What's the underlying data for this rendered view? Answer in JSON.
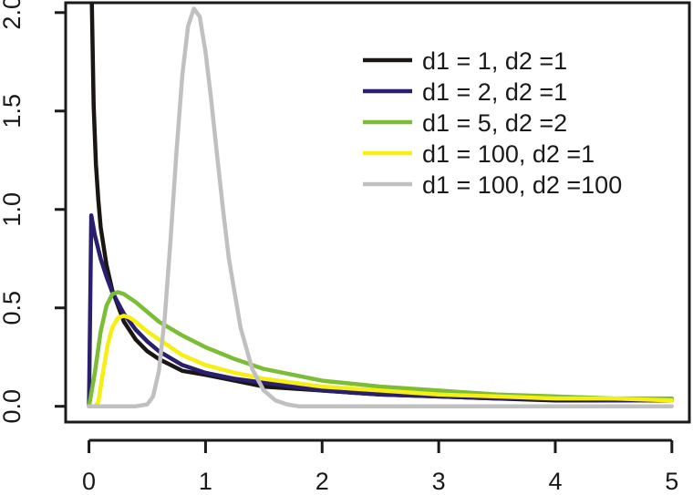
{
  "chart_data": {
    "type": "line",
    "title": "",
    "xlabel": "",
    "ylabel": "",
    "xlim": [
      -0.2,
      5.15
    ],
    "ylim": [
      -0.08,
      2.05
    ],
    "x_ticks": [
      0,
      1,
      2,
      3,
      4,
      5
    ],
    "x_tick_labels": [
      "0",
      "1",
      "2",
      "3",
      "4",
      "5"
    ],
    "y_ticks": [
      0.0,
      0.5,
      1.0,
      1.5,
      2.0
    ],
    "y_tick_labels": [
      "0.0",
      "0.5",
      "1.0",
      "1.5",
      "2.0"
    ],
    "grid": false,
    "legend_position": "top-right",
    "series": [
      {
        "name": "d1 = 1, d2 =1",
        "color": "#1a1614",
        "x": [
          0.02,
          0.04,
          0.06,
          0.08,
          0.1,
          0.15,
          0.2,
          0.3,
          0.4,
          0.5,
          0.6,
          0.8,
          1.0,
          1.25,
          1.5,
          2.0,
          2.5,
          3.0,
          3.5,
          4.0,
          4.5,
          5.0
        ],
        "y": [
          2.21,
          1.53,
          1.23,
          1.05,
          0.91,
          0.72,
          0.59,
          0.43,
          0.34,
          0.28,
          0.24,
          0.18,
          0.16,
          0.13,
          0.1,
          0.08,
          0.06,
          0.05,
          0.04,
          0.03,
          0.03,
          0.03
        ]
      },
      {
        "name": "d1 = 2, d2 =1",
        "color": "#2a1e6e",
        "x": [
          0,
          0.02,
          0.05,
          0.1,
          0.15,
          0.2,
          0.3,
          0.4,
          0.5,
          0.6,
          0.8,
          1.0,
          1.25,
          1.5,
          2.0,
          2.5,
          3.0,
          3.5,
          4.0,
          4.5,
          5.0
        ],
        "y": [
          0,
          0.97,
          0.87,
          0.75,
          0.66,
          0.58,
          0.47,
          0.39,
          0.33,
          0.28,
          0.21,
          0.17,
          0.14,
          0.12,
          0.08,
          0.06,
          0.05,
          0.04,
          0.04,
          0.03,
          0.03
        ]
      },
      {
        "name": "d1 = 5, d2 =2",
        "color": "#7bbd34",
        "x": [
          0,
          0.05,
          0.1,
          0.15,
          0.2,
          0.25,
          0.3,
          0.4,
          0.5,
          0.6,
          0.8,
          1.0,
          1.25,
          1.5,
          2.0,
          2.5,
          3.0,
          3.5,
          4.0,
          4.5,
          5.0
        ],
        "y": [
          0,
          0.17,
          0.38,
          0.51,
          0.57,
          0.58,
          0.57,
          0.53,
          0.48,
          0.43,
          0.36,
          0.3,
          0.24,
          0.19,
          0.13,
          0.1,
          0.08,
          0.06,
          0.05,
          0.04,
          0.04
        ]
      },
      {
        "name": "d1 = 100, d2 =1",
        "color": "#f7ee12",
        "x": [
          0,
          0.05,
          0.08,
          0.12,
          0.16,
          0.2,
          0.25,
          0.3,
          0.35,
          0.4,
          0.5,
          0.6,
          0.8,
          1.0,
          1.25,
          1.5,
          2.0,
          2.5,
          3.0,
          3.5,
          4.0,
          4.5,
          5.0
        ],
        "y": [
          0,
          0.0,
          0.02,
          0.17,
          0.31,
          0.4,
          0.45,
          0.46,
          0.45,
          0.43,
          0.38,
          0.34,
          0.26,
          0.21,
          0.17,
          0.14,
          0.1,
          0.08,
          0.06,
          0.05,
          0.04,
          0.04,
          0.03
        ]
      },
      {
        "name": "d1 = 100, d2 =100",
        "color": "#c0c0c0",
        "x": [
          0,
          0.4,
          0.5,
          0.55,
          0.6,
          0.65,
          0.7,
          0.75,
          0.8,
          0.85,
          0.9,
          0.95,
          1.0,
          1.05,
          1.1,
          1.15,
          1.2,
          1.3,
          1.4,
          1.5,
          1.6,
          1.7,
          1.8,
          1.9,
          2.0,
          3.0,
          4.0,
          5.0
        ],
        "y": [
          0,
          0,
          0.01,
          0.05,
          0.18,
          0.45,
          0.85,
          1.29,
          1.68,
          1.93,
          2.02,
          1.98,
          1.8,
          1.55,
          1.27,
          1.0,
          0.75,
          0.4,
          0.19,
          0.08,
          0.03,
          0.01,
          0.0,
          0.0,
          0.0,
          0.0,
          0.0,
          0.0
        ]
      }
    ]
  }
}
